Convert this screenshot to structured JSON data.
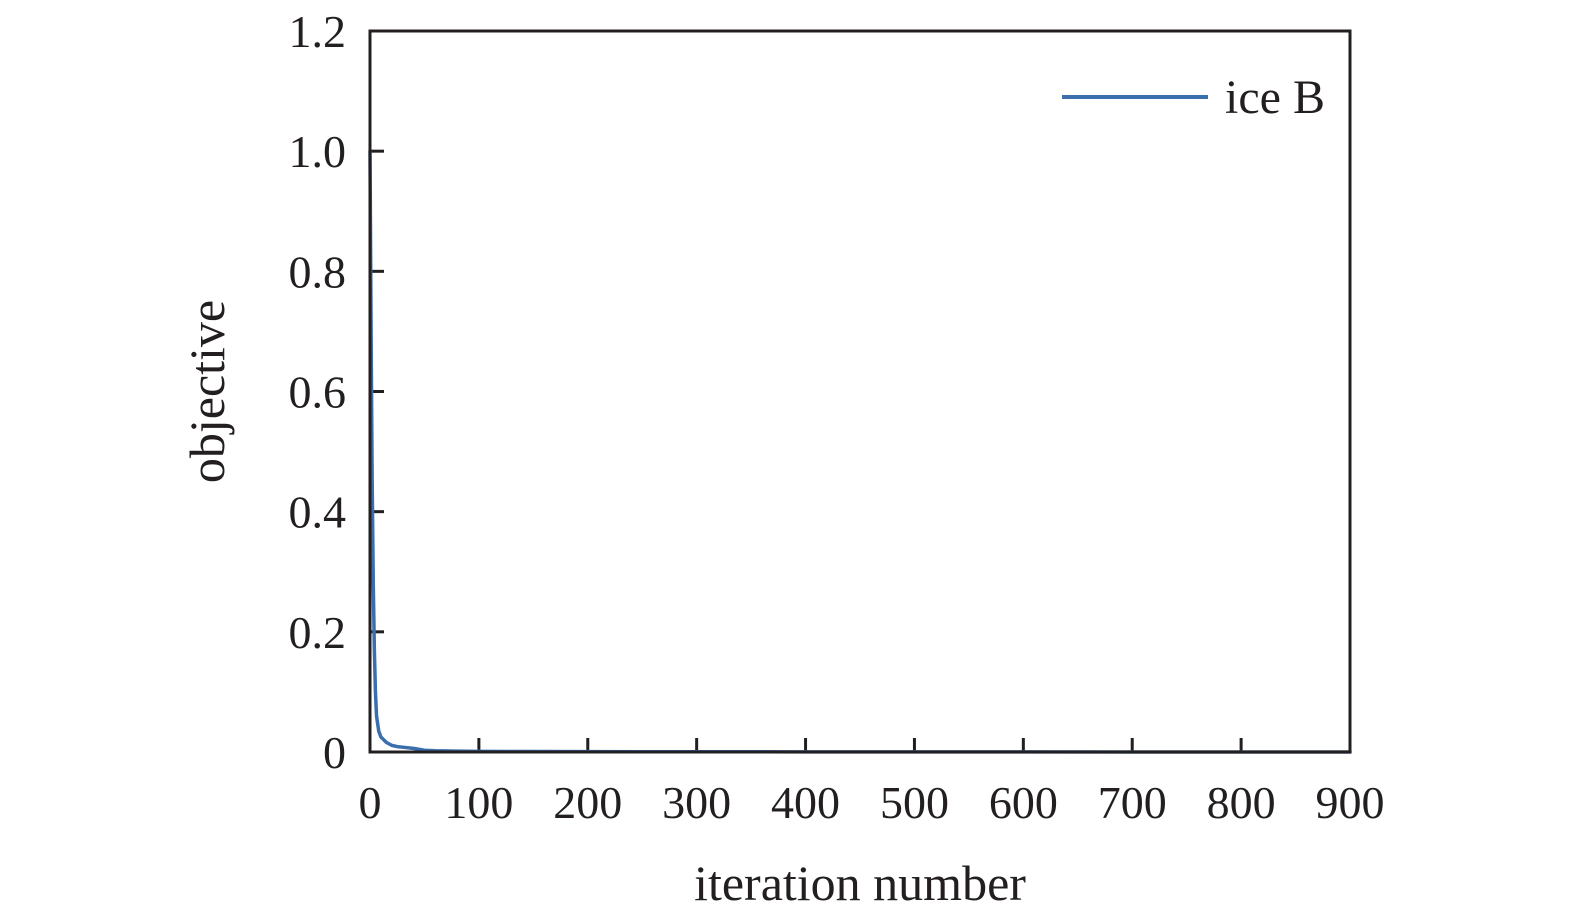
{
  "chart_data": {
    "type": "line",
    "xlabel": "iteration number",
    "ylabel": "objective",
    "xlim": [
      0,
      900
    ],
    "ylim": [
      0,
      1.2
    ],
    "x_ticks": [
      0,
      100,
      200,
      300,
      400,
      500,
      600,
      700,
      800,
      900
    ],
    "x_tick_labels": [
      "0",
      "100",
      "200",
      "300",
      "400",
      "500",
      "600",
      "700",
      "800",
      "900"
    ],
    "y_ticks": [
      0,
      0.2,
      0.4,
      0.6,
      0.8,
      1.0,
      1.2
    ],
    "y_tick_labels": [
      "0",
      "0.2",
      "0.4",
      "0.6",
      "0.8",
      "1.0",
      "1.2"
    ],
    "grid": false,
    "legend": {
      "position": "top-right"
    },
    "series": [
      {
        "name": "ice B",
        "color": "#3a6ead",
        "x": [
          0,
          1,
          2,
          3,
          4,
          5,
          6,
          8,
          10,
          15,
          20,
          25,
          30,
          40,
          50,
          60,
          80,
          100,
          150,
          200,
          300,
          400,
          500,
          600,
          700,
          800,
          900
        ],
        "y": [
          1.0,
          0.7,
          0.45,
          0.28,
          0.17,
          0.1,
          0.06,
          0.035,
          0.025,
          0.016,
          0.011,
          0.009,
          0.008,
          0.006,
          0.003,
          0.002,
          0.0015,
          0.001,
          0.0008,
          0.0006,
          0.0004,
          0.0003,
          0.0002,
          0.0002,
          0.0001,
          0.0001,
          0.0001
        ]
      }
    ]
  }
}
